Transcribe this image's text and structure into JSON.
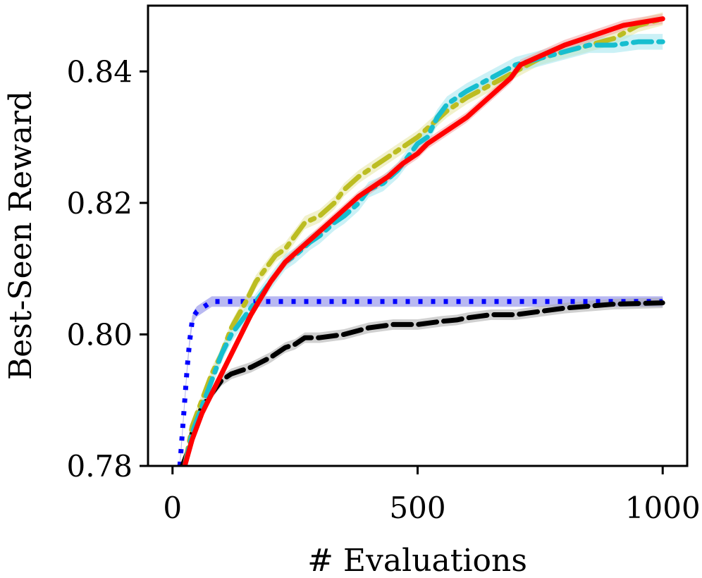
{
  "chart_data": {
    "type": "line",
    "title": "",
    "xlabel": "# Evaluations",
    "ylabel": "Best-Seen Reward",
    "xlim": [
      -50,
      1050
    ],
    "ylim": [
      0.78,
      0.85
    ],
    "xticks": [
      0,
      500,
      1000
    ],
    "xtick_labels": [
      "0",
      "500",
      "1000"
    ],
    "yticks": [
      0.78,
      0.8,
      0.82,
      0.84
    ],
    "ytick_labels": [
      "0.78",
      "0.80",
      "0.82",
      "0.84"
    ],
    "grid": false,
    "legend": "none",
    "series": [
      {
        "name": "blue-dotted",
        "color": "#0000ff",
        "band_color": "#7f7fe6",
        "dash": "dotted",
        "x": [
          15,
          20,
          25,
          30,
          35,
          40,
          45,
          50,
          60,
          70,
          80,
          100,
          300,
          500,
          700,
          900,
          1000
        ],
        "y": [
          0.78,
          0.785,
          0.79,
          0.795,
          0.799,
          0.802,
          0.803,
          0.8035,
          0.804,
          0.8045,
          0.805,
          0.805,
          0.805,
          0.805,
          0.805,
          0.805,
          0.805
        ],
        "band": [
          0.0008,
          0.0008,
          0.0008,
          0.0008,
          0.0008,
          0.0008,
          0.0008,
          0.0008,
          0.0008,
          0.0008,
          0.0008,
          0.0008,
          0.0008,
          0.0008,
          0.0008,
          0.0008,
          0.0008
        ]
      },
      {
        "name": "black-dashed",
        "color": "#000000",
        "band_color": "#aaaaaa",
        "dash": "dashed",
        "x": [
          20,
          30,
          40,
          50,
          60,
          80,
          100,
          120,
          140,
          160,
          200,
          230,
          250,
          270,
          300,
          350,
          400,
          450,
          500,
          550,
          580,
          600,
          650,
          700,
          750,
          800,
          850,
          900,
          1000
        ],
        "y": [
          0.78,
          0.782,
          0.785,
          0.787,
          0.789,
          0.791,
          0.793,
          0.794,
          0.7945,
          0.795,
          0.7965,
          0.798,
          0.7985,
          0.7995,
          0.7995,
          0.8,
          0.801,
          0.8015,
          0.8015,
          0.802,
          0.8022,
          0.8025,
          0.803,
          0.803,
          0.8035,
          0.804,
          0.8043,
          0.8046,
          0.8048
        ],
        "band": [
          0.0008,
          0.0008,
          0.0008,
          0.0008,
          0.0008,
          0.0008,
          0.0008,
          0.0008,
          0.0008,
          0.0008,
          0.0008,
          0.0008,
          0.0008,
          0.0008,
          0.0008,
          0.0008,
          0.0008,
          0.0008,
          0.0008,
          0.0008,
          0.0008,
          0.0008,
          0.0008,
          0.0008,
          0.0008,
          0.0008,
          0.0008,
          0.0008,
          0.0008
        ]
      },
      {
        "name": "olive-dashdot",
        "color": "#bcbd22",
        "band_color": "#e6e6a0",
        "dash": "dashdot",
        "x": [
          25,
          40,
          60,
          80,
          100,
          120,
          150,
          170,
          190,
          210,
          230,
          250,
          270,
          300,
          330,
          350,
          380,
          400,
          430,
          460,
          500,
          530,
          560,
          600,
          650,
          700,
          750,
          800,
          850,
          900,
          950,
          1000
        ],
        "y": [
          0.78,
          0.786,
          0.79,
          0.794,
          0.797,
          0.801,
          0.805,
          0.808,
          0.81,
          0.812,
          0.813,
          0.815,
          0.817,
          0.818,
          0.82,
          0.822,
          0.824,
          0.825,
          0.8265,
          0.828,
          0.83,
          0.832,
          0.834,
          0.836,
          0.838,
          0.84,
          0.842,
          0.843,
          0.844,
          0.845,
          0.847,
          0.848
        ],
        "band": [
          0.001,
          0.001,
          0.001,
          0.001,
          0.001,
          0.001,
          0.001,
          0.001,
          0.001,
          0.001,
          0.001,
          0.001,
          0.001,
          0.001,
          0.001,
          0.001,
          0.001,
          0.001,
          0.001,
          0.001,
          0.001,
          0.001,
          0.001,
          0.001,
          0.001,
          0.001,
          0.001,
          0.001,
          0.001,
          0.001,
          0.001,
          0.001
        ]
      },
      {
        "name": "cyan-dashdot",
        "color": "#17becf",
        "band_color": "#a0e6ee",
        "dash": "dashdot",
        "x": [
          25,
          40,
          60,
          80,
          100,
          120,
          150,
          170,
          190,
          210,
          230,
          250,
          280,
          300,
          330,
          350,
          380,
          400,
          430,
          460,
          480,
          500,
          520,
          540,
          560,
          600,
          650,
          700,
          750,
          800,
          850,
          900,
          950,
          1000
        ],
        "y": [
          0.78,
          0.785,
          0.789,
          0.793,
          0.797,
          0.8,
          0.803,
          0.805,
          0.807,
          0.809,
          0.811,
          0.812,
          0.814,
          0.815,
          0.817,
          0.818,
          0.82,
          0.822,
          0.823,
          0.825,
          0.827,
          0.829,
          0.83,
          0.833,
          0.835,
          0.837,
          0.839,
          0.841,
          0.842,
          0.843,
          0.844,
          0.844,
          0.8445,
          0.8445
        ],
        "band": [
          0.0012,
          0.0012,
          0.0012,
          0.0012,
          0.0012,
          0.0012,
          0.0012,
          0.0012,
          0.0012,
          0.0012,
          0.0012,
          0.0012,
          0.0012,
          0.0012,
          0.0012,
          0.0012,
          0.0012,
          0.0012,
          0.0012,
          0.0012,
          0.0012,
          0.0012,
          0.0012,
          0.0012,
          0.0012,
          0.0012,
          0.0012,
          0.0012,
          0.0012,
          0.0012,
          0.0012,
          0.0012,
          0.0012,
          0.0012
        ]
      },
      {
        "name": "red-solid",
        "color": "#ff0000",
        "band_color": "#f2a0a0",
        "dash": "solid",
        "x": [
          25,
          40,
          60,
          80,
          100,
          120,
          140,
          160,
          180,
          200,
          230,
          260,
          290,
          320,
          350,
          380,
          410,
          440,
          470,
          500,
          520,
          550,
          580,
          600,
          630,
          660,
          690,
          710,
          740,
          770,
          800,
          840,
          880,
          920,
          960,
          1000
        ],
        "y": [
          0.78,
          0.784,
          0.788,
          0.791,
          0.794,
          0.797,
          0.8,
          0.803,
          0.8055,
          0.808,
          0.811,
          0.813,
          0.815,
          0.817,
          0.819,
          0.821,
          0.8225,
          0.824,
          0.826,
          0.8275,
          0.829,
          0.8305,
          0.832,
          0.833,
          0.835,
          0.837,
          0.839,
          0.841,
          0.842,
          0.843,
          0.844,
          0.845,
          0.846,
          0.847,
          0.8475,
          0.848
        ],
        "band": [
          0.0008,
          0.0008,
          0.0008,
          0.0008,
          0.0008,
          0.0008,
          0.0008,
          0.0008,
          0.0008,
          0.0008,
          0.0008,
          0.0008,
          0.0008,
          0.0008,
          0.0008,
          0.0008,
          0.0008,
          0.0008,
          0.0008,
          0.0008,
          0.0008,
          0.0008,
          0.0008,
          0.0008,
          0.0008,
          0.0008,
          0.0008,
          0.0008,
          0.0008,
          0.0008,
          0.0008,
          0.0008,
          0.0008,
          0.0008,
          0.0008,
          0.0008
        ]
      }
    ]
  }
}
